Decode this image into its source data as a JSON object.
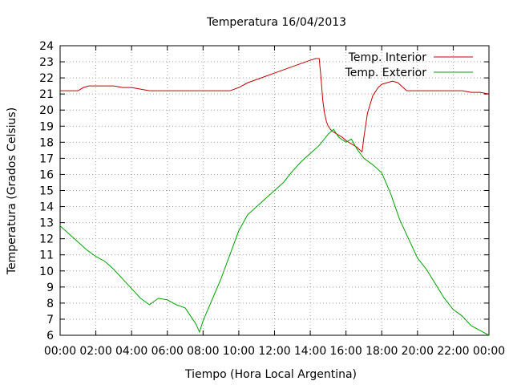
{
  "chart_data": {
    "type": "line",
    "title": "Temperatura 16/04/2013",
    "xlabel": "Tiempo (Hora Local Argentina)",
    "ylabel": "Temperatura (Grados Celsius)",
    "xlim": [
      0,
      24
    ],
    "ylim": [
      6,
      24
    ],
    "x_ticks": [
      "00:00",
      "02:00",
      "04:00",
      "06:00",
      "08:00",
      "10:00",
      "12:00",
      "14:00",
      "16:00",
      "18:00",
      "20:00",
      "22:00",
      "00:00"
    ],
    "y_ticks": [
      6,
      7,
      8,
      9,
      10,
      11,
      12,
      13,
      14,
      15,
      16,
      17,
      18,
      19,
      20,
      21,
      22,
      23,
      24
    ],
    "grid": true,
    "legend_position": "top-right",
    "series": [
      {
        "name": "Temp. Interior",
        "color": "#c00000",
        "x": [
          0,
          0.5,
          1.0,
          1.3,
          1.6,
          2.0,
          2.5,
          3.0,
          3.5,
          4.0,
          4.5,
          5.0,
          5.5,
          6.0,
          6.5,
          7.0,
          7.5,
          8.0,
          8.5,
          9.0,
          9.5,
          10.0,
          10.5,
          11.0,
          11.5,
          12.0,
          12.5,
          13.0,
          13.5,
          14.0,
          14.3,
          14.5,
          14.6,
          14.7,
          14.8,
          14.9,
          15.0,
          15.2,
          15.5,
          15.8,
          16.0,
          16.3,
          16.6,
          16.8,
          16.9,
          17.0,
          17.2,
          17.5,
          17.8,
          18.0,
          18.3,
          18.6,
          18.9,
          19.1,
          19.4,
          19.7,
          20.0,
          20.5,
          21.0,
          21.5,
          22.0,
          22.5,
          23.0,
          23.5,
          24.0
        ],
        "values": [
          21.2,
          21.2,
          21.2,
          21.4,
          21.5,
          21.5,
          21.5,
          21.5,
          21.4,
          21.4,
          21.3,
          21.2,
          21.2,
          21.2,
          21.2,
          21.2,
          21.2,
          21.2,
          21.2,
          21.2,
          21.2,
          21.4,
          21.7,
          21.9,
          22.1,
          22.3,
          22.5,
          22.7,
          22.9,
          23.1,
          23.2,
          23.2,
          22.0,
          20.6,
          19.8,
          19.3,
          19.0,
          18.7,
          18.5,
          18.3,
          18.1,
          17.9,
          17.7,
          17.5,
          17.4,
          18.3,
          19.8,
          20.9,
          21.4,
          21.6,
          21.7,
          21.8,
          21.7,
          21.5,
          21.2,
          21.2,
          21.2,
          21.2,
          21.2,
          21.2,
          21.2,
          21.2,
          21.1,
          21.1,
          21.0
        ]
      },
      {
        "name": "Temp. Exterior",
        "color": "#00a000",
        "x": [
          0,
          0.5,
          1.0,
          1.5,
          2.0,
          2.5,
          3.0,
          3.5,
          4.0,
          4.5,
          5.0,
          5.5,
          6.0,
          6.5,
          7.0,
          7.3,
          7.6,
          7.8,
          8.0,
          8.5,
          9.0,
          9.5,
          10.0,
          10.5,
          11.0,
          11.5,
          12.0,
          12.5,
          13.0,
          13.5,
          14.0,
          14.5,
          15.0,
          15.3,
          15.6,
          16.0,
          16.3,
          16.6,
          17.0,
          17.5,
          18.0,
          18.5,
          19.0,
          19.5,
          20.0,
          20.5,
          21.0,
          21.5,
          22.0,
          22.5,
          23.0,
          23.5,
          24.0
        ],
        "values": [
          12.8,
          12.3,
          11.8,
          11.3,
          10.9,
          10.6,
          10.1,
          9.5,
          8.9,
          8.3,
          7.9,
          8.3,
          8.2,
          7.9,
          7.7,
          7.2,
          6.7,
          6.2,
          6.9,
          8.2,
          9.5,
          11.0,
          12.5,
          13.5,
          14.0,
          14.5,
          15.0,
          15.5,
          16.2,
          16.8,
          17.3,
          17.8,
          18.5,
          18.8,
          18.3,
          18.0,
          18.2,
          17.6,
          17.0,
          16.6,
          16.1,
          14.8,
          13.2,
          12.0,
          10.8,
          10.1,
          9.2,
          8.3,
          7.6,
          7.2,
          6.6,
          6.3,
          6.0
        ]
      }
    ]
  }
}
